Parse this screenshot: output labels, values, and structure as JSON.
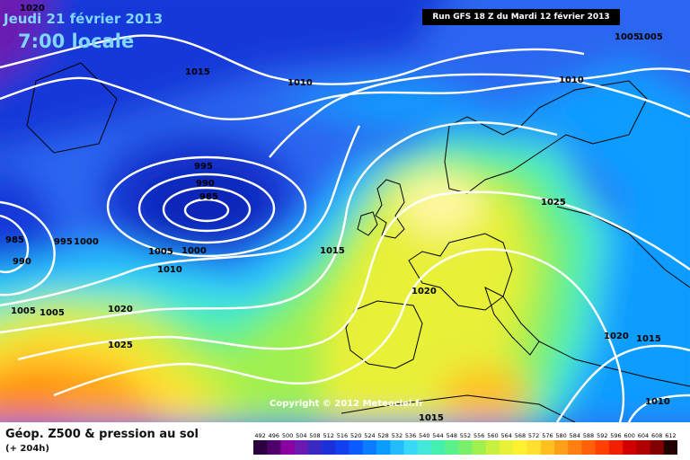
{
  "header": {
    "date": "Jeudi 21 février 2013",
    "time": "7:00 locale",
    "run": "Run GFS 18 Z du Mardi 12 février 2013"
  },
  "copyright": "Copyright © 2012 Meteociel.fr",
  "footer": {
    "title": "Géop. Z500 & pression au sol",
    "subtitle": "(+ 204h)"
  },
  "isobar_labels": [
    "1020",
    "1015",
    "1010",
    "995",
    "990",
    "985",
    "1000",
    "1005",
    "985",
    "990",
    "995",
    "1000",
    "1005",
    "1010",
    "1005",
    "1005",
    "1020",
    "1025",
    "1015",
    "1020",
    "1025",
    "1010",
    "1005",
    "1020",
    "1015",
    "1015",
    "1010"
  ],
  "legend": {
    "ticks": [
      "492",
      "496",
      "500",
      "504",
      "508",
      "512",
      "516",
      "520",
      "524",
      "528",
      "532",
      "536",
      "540",
      "544",
      "548",
      "552",
      "556",
      "560",
      "564",
      "568",
      "572",
      "576",
      "580",
      "584",
      "588",
      "592",
      "596",
      "600",
      "604",
      "608",
      "612"
    ],
    "colors": [
      "#2a0040",
      "#50006a",
      "#8a00a0",
      "#6a1ab0",
      "#3a28c0",
      "#1a30d8",
      "#1040f0",
      "#0a5cff",
      "#0a7cff",
      "#0a9cff",
      "#22bcff",
      "#3ad8f8",
      "#44e8d8",
      "#44f0b0",
      "#5af08a",
      "#7af06a",
      "#a0f050",
      "#c8f040",
      "#e8f038",
      "#fff030",
      "#ffe030",
      "#ffc020",
      "#ffa018",
      "#ff8010",
      "#ff6008",
      "#ff4000",
      "#f02000",
      "#d00000",
      "#b00000",
      "#800000",
      "#200000"
    ]
  }
}
